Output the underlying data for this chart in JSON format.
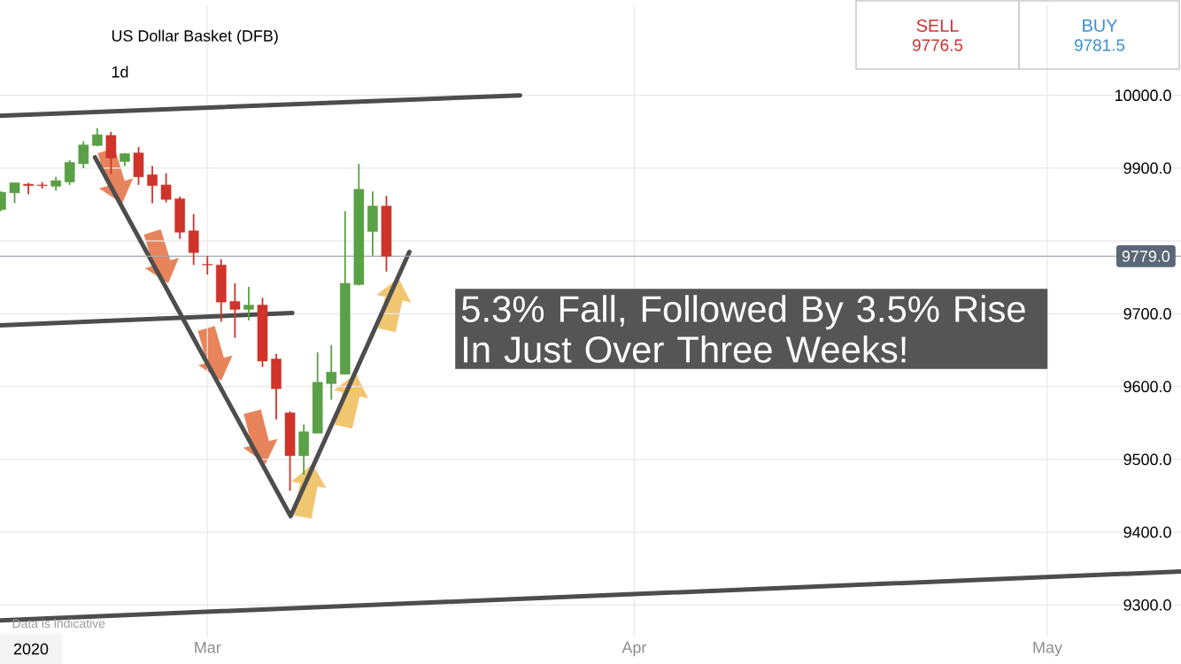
{
  "chart_data": {
    "type": "candlestick",
    "title": "US Dollar Basket (DFB)",
    "subtitle": "1d",
    "x": [
      "2020-02-15",
      "2020-02-16",
      "2020-02-17",
      "2020-02-18",
      "2020-02-19",
      "2020-02-20",
      "2020-02-21",
      "2020-02-22",
      "2020-02-23",
      "2020-02-24",
      "2020-02-25",
      "2020-02-26",
      "2020-02-27",
      "2020-02-28",
      "2020-02-29",
      "2020-03-01",
      "2020-03-02",
      "2020-03-03",
      "2020-03-04",
      "2020-03-05",
      "2020-03-06",
      "2020-03-07",
      "2020-03-08",
      "2020-03-09",
      "2020-03-10",
      "2020-03-11",
      "2020-03-12",
      "2020-03-13",
      "2020-03-14"
    ],
    "ohlc": [
      [
        9843,
        9868,
        9841,
        9867
      ],
      [
        9866,
        9880,
        9852,
        9880
      ],
      [
        9878,
        9880,
        9864,
        9876
      ],
      [
        9877,
        9881,
        9872,
        9876
      ],
      [
        9875,
        9888,
        9869,
        9883
      ],
      [
        9881,
        9911,
        9877,
        9908
      ],
      [
        9906,
        9937,
        9900,
        9932
      ],
      [
        9931,
        9955,
        9930,
        9946
      ],
      [
        9945,
        9950,
        9892,
        9914
      ],
      [
        9909,
        9921,
        9903,
        9920
      ],
      [
        9921,
        9929,
        9877,
        9888
      ],
      [
        9891,
        9903,
        9852,
        9876
      ],
      [
        9877,
        9893,
        9853,
        9857
      ],
      [
        9858,
        9861,
        9803,
        9812
      ],
      [
        9814,
        9837,
        9767,
        9784
      ],
      [
        9768,
        9779,
        9754,
        9767
      ],
      [
        9767,
        9775,
        9689,
        9716
      ],
      [
        9717,
        9742,
        9667,
        9706
      ],
      [
        9706,
        9737,
        9691,
        9712
      ],
      [
        9712,
        9722,
        9627,
        9635
      ],
      [
        9638,
        9645,
        9555,
        9597
      ],
      [
        9564,
        9566,
        9457,
        9505
      ],
      [
        9505,
        9548,
        9479,
        9538
      ],
      [
        9536,
        9647,
        9536,
        9606
      ],
      [
        9604,
        9657,
        9582,
        9620
      ],
      [
        9617,
        9841,
        9617,
        9742
      ],
      [
        9740,
        9906,
        9739,
        9871
      ],
      [
        9813,
        9868,
        9780,
        9848
      ],
      [
        9848,
        9862,
        9758,
        9779
      ]
    ],
    "colors": [
      "#5aa046",
      "#5aa046",
      "#cf3329",
      "#cf3329",
      "#5aa046",
      "#5aa046",
      "#5aa046",
      "#5aa046",
      "#cf3329",
      "#5aa046",
      "#cf3329",
      "#cf3329",
      "#cf3329",
      "#cf3329",
      "#cf3329",
      "#cf3329",
      "#cf3329",
      "#cf3329",
      "#5aa046",
      "#cf3329",
      "#cf3329",
      "#cf3329",
      "#5aa046",
      "#5aa046",
      "#5aa046",
      "#5aa046",
      "#5aa046",
      "#5aa046",
      "#cf3329"
    ],
    "series": [
      {
        "type": "line",
        "color": "#4d4d4d",
        "x": [
          "2020-02-14T22:30",
          "2020-03-23T17:00"
        ],
        "values": [
          9972,
          10000
        ]
      },
      {
        "type": "line",
        "color": "#4d4d4d",
        "x": [
          "2020-02-14T22:30",
          "2020-03-07T04:00"
        ],
        "values": [
          9684,
          9701
        ]
      },
      {
        "type": "line",
        "color": "#4d4d4d",
        "x": [
          "2020-02-14T22:30",
          "2020-05-10T17:00"
        ],
        "values": [
          9279,
          9346
        ]
      },
      {
        "type": "line",
        "color": "#4d4d4d",
        "x": [
          "2020-02-21T20:00",
          "2020-03-07T01:00",
          "2020-03-15T16:00"
        ],
        "values": [
          9915,
          9422,
          9785
        ]
      }
    ],
    "ref_lines": [
      {
        "axis": "y",
        "value": 9779,
        "label": "9779.0",
        "color": "#a3a8b1"
      }
    ],
    "xlim": [
      "2020-02-14T22:30",
      "2020-05-10T17:00"
    ],
    "xticks": [
      {
        "value": "2020-03-01",
        "label": "Mar"
      },
      {
        "value": "2020-04-01",
        "label": "Apr"
      },
      {
        "value": "2020-05-01",
        "label": "May"
      }
    ],
    "ylim": [
      9256,
      10123
    ],
    "yticks": [
      {
        "value": 9300,
        "label": "9300.0"
      },
      {
        "value": 9400,
        "label": "9400.0"
      },
      {
        "value": 9500,
        "label": "9500.0"
      },
      {
        "value": 9600,
        "label": "9600.0"
      },
      {
        "value": 9700,
        "label": "9700.0"
      },
      {
        "value": 9800,
        "label": null
      },
      {
        "value": 9900,
        "label": "9900.0"
      },
      {
        "value": 10000,
        "label": "10000.0"
      }
    ],
    "grid": true,
    "annotations": [
      "SELL",
      "9776.5",
      "BUY",
      "9781.5",
      "5.3% Fall, Followed By 3.5% Rise In Just Over Three Weeks!",
      "Data is indicative",
      "2020"
    ]
  }
}
